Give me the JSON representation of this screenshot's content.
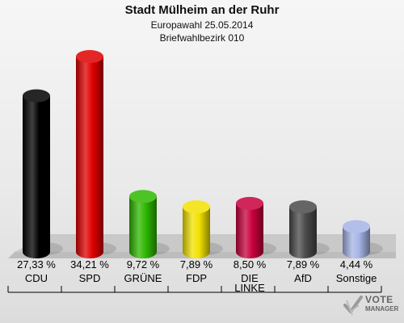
{
  "chart_data": {
    "type": "bar",
    "title": "Stadt Mülheim an der Ruhr",
    "subtitle": "Europawahl 25.05.2014",
    "subtitle2": "Briefwahlbezirk 010",
    "categories": [
      "CDU",
      "SPD",
      "GRÜNE",
      "FDP",
      "DIE LINKE",
      "AfD",
      "Sonstige"
    ],
    "values": [
      27.33,
      34.21,
      9.72,
      7.89,
      8.5,
      7.89,
      4.44
    ],
    "labels": [
      "27,33 %",
      "34,21 %",
      "9,72 %",
      "7,89 %",
      "8,50 %",
      "7,89 %",
      "4,44 %"
    ],
    "colors": [
      "#000000",
      "#e00000",
      "#2db800",
      "#f2e200",
      "#c8003c",
      "#4a4a4a",
      "#a6b4e6"
    ],
    "ylim": [
      0,
      34.21
    ],
    "grid": false,
    "legend": "none"
  },
  "logo": {
    "line1": "VOTE",
    "line2": "MANAGER"
  }
}
